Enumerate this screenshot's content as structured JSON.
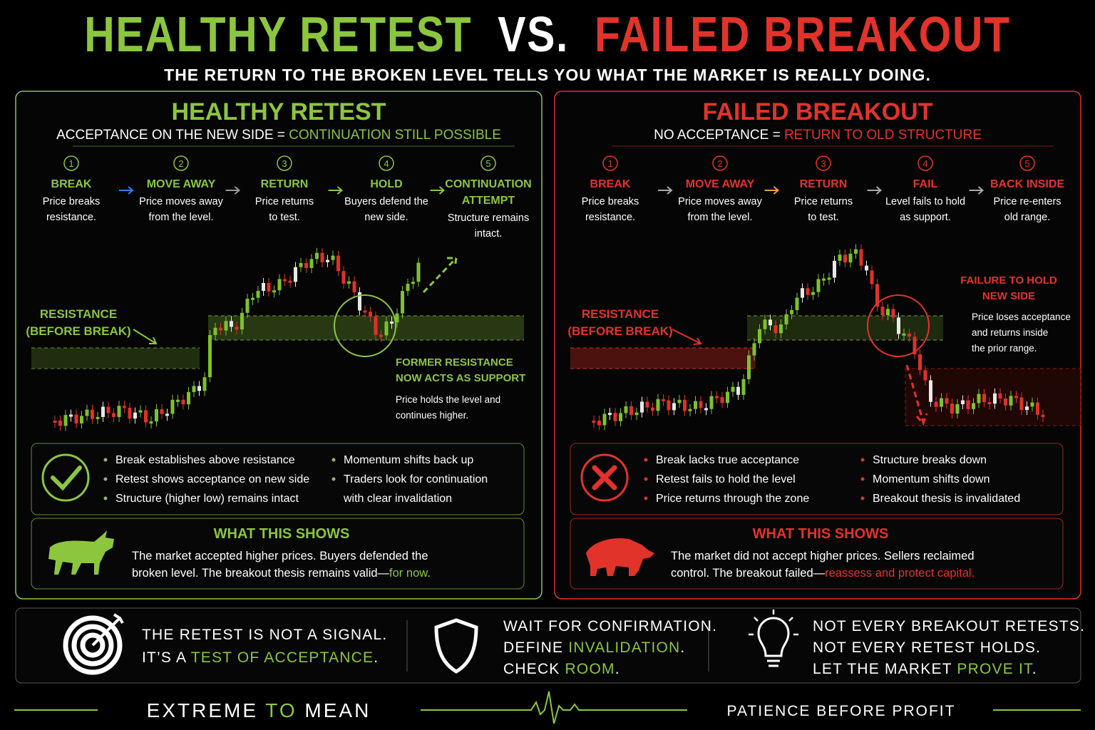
{
  "header": {
    "title": [
      "HEALTHY RETEST",
      "VS.",
      "FAILED BREAKOUT"
    ],
    "subtitle": "THE RETURN TO THE BROKEN LEVEL TELLS YOU WHAT THE MARKET IS REALLY DOING."
  },
  "panels": [
    {
      "accent": "#8cc63f",
      "title": "HEALTHY RETEST",
      "subtitle": [
        "ACCEPTANCE ON THE NEW SIDE = ",
        {
          "accent": "CONTINUATION STILL POSSIBLE"
        }
      ],
      "steps": [
        {
          "number": "1",
          "title": [
            "BREAK"
          ],
          "text": [
            "Price breaks",
            "resistance."
          ]
        },
        {
          "number": "2",
          "title": [
            "MOVE AWAY"
          ],
          "text": [
            "Price moves away",
            "from the level."
          ]
        },
        {
          "number": "3",
          "title": [
            "RETURN"
          ],
          "text": [
            "Price returns",
            "to test."
          ]
        },
        {
          "number": "4",
          "title": [
            "HOLD"
          ],
          "text": [
            "Buyers defend the",
            "new side."
          ]
        },
        {
          "number": "5",
          "title": [
            "CONTINUATION",
            "ATTEMPT"
          ],
          "text": [
            "Structure remains",
            "intact."
          ]
        }
      ],
      "resistance_label": [
        "RESISTANCE",
        "(BEFORE BREAK)"
      ],
      "note": {
        "title": [
          "FORMER RESISTANCE",
          "NOW ACTS AS SUPPORT"
        ],
        "text": [
          "Price holds the level and",
          "continues higher."
        ]
      },
      "bullets": [
        [
          [
            "Break establishes above resistance"
          ],
          [
            "Retest shows acceptance on new side"
          ],
          [
            "Structure (higher low) remains intact"
          ]
        ],
        [
          [
            "Momentum shifts back up"
          ],
          [
            "Traders look for continuation",
            "with clear invalidation"
          ]
        ]
      ],
      "what": {
        "title": "WHAT THIS SHOWS",
        "text": [
          [
            "The market accepted higher prices. Buyers defended the"
          ],
          [
            "broken level. The breakout thesis remains valid—",
            {
              "accent": "for now."
            }
          ]
        ]
      }
    },
    {
      "accent": "#e2332b",
      "title": "FAILED BREAKOUT",
      "subtitle": [
        "NO ACCEPTANCE = ",
        {
          "accent": "RETURN TO OLD STRUCTURE"
        }
      ],
      "steps": [
        {
          "number": "1",
          "title": [
            "BREAK"
          ],
          "text": [
            "Price breaks",
            "resistance."
          ]
        },
        {
          "number": "2",
          "title": [
            "MOVE AWAY"
          ],
          "text": [
            "Price moves away",
            "from the level."
          ]
        },
        {
          "number": "3",
          "title": [
            "RETURN"
          ],
          "text": [
            "Price returns",
            "to test."
          ]
        },
        {
          "number": "4",
          "title": [
            "FAIL"
          ],
          "text": [
            "Level fails to hold",
            "as support."
          ]
        },
        {
          "number": "5",
          "title": [
            "BACK INSIDE"
          ],
          "text": [
            "Price re-enters",
            "old range."
          ]
        }
      ],
      "resistance_label": [
        "RESISTANCE",
        "(BEFORE BREAK)"
      ],
      "note": {
        "title": [
          "FAILURE TO HOLD",
          "NEW SIDE"
        ],
        "text": [
          "Price loses acceptance",
          "and returns inside",
          "the prior range."
        ]
      },
      "bullets": [
        [
          [
            "Break lacks true acceptance"
          ],
          [
            "Retest fails to hold the level"
          ],
          [
            "Price returns through the zone"
          ]
        ],
        [
          [
            "Structure breaks down"
          ],
          [
            "Momentum shifts down"
          ],
          [
            "Breakout thesis is invalidated"
          ]
        ]
      ],
      "what": {
        "title": "WHAT THIS SHOWS",
        "text": [
          [
            "The market did not accept higher prices. Sellers reclaimed"
          ],
          [
            "control. The breakout failed—",
            {
              "accent": "reassess and protect capital."
            }
          ]
        ]
      }
    }
  ],
  "tips_accent": "#8cc63f",
  "tips": [
    [
      [
        "THE RETEST IS NOT A SIGNAL."
      ],
      [
        "IT’S A ",
        {
          "accent": "TEST OF ACCEPTANCE"
        },
        "."
      ]
    ],
    [
      [
        "WAIT FOR CONFIRMATION."
      ],
      [
        "DEFINE ",
        {
          "accent": "INVALIDATION"
        },
        "."
      ],
      [
        "CHECK ",
        {
          "accent": "ROOM"
        },
        "."
      ]
    ],
    [
      [
        "NOT EVERY BREAKOUT RETESTS."
      ],
      [
        "NOT EVERY RETEST HOLDS."
      ],
      [
        "LET THE MARKET ",
        {
          "accent": "PROVE IT"
        },
        "."
      ]
    ]
  ],
  "footer": {
    "brand": [
      "EXTREME ",
      {
        "accent": "TO"
      },
      " MEAN"
    ],
    "tagline": "PATIENCE BEFORE PROFIT"
  }
}
